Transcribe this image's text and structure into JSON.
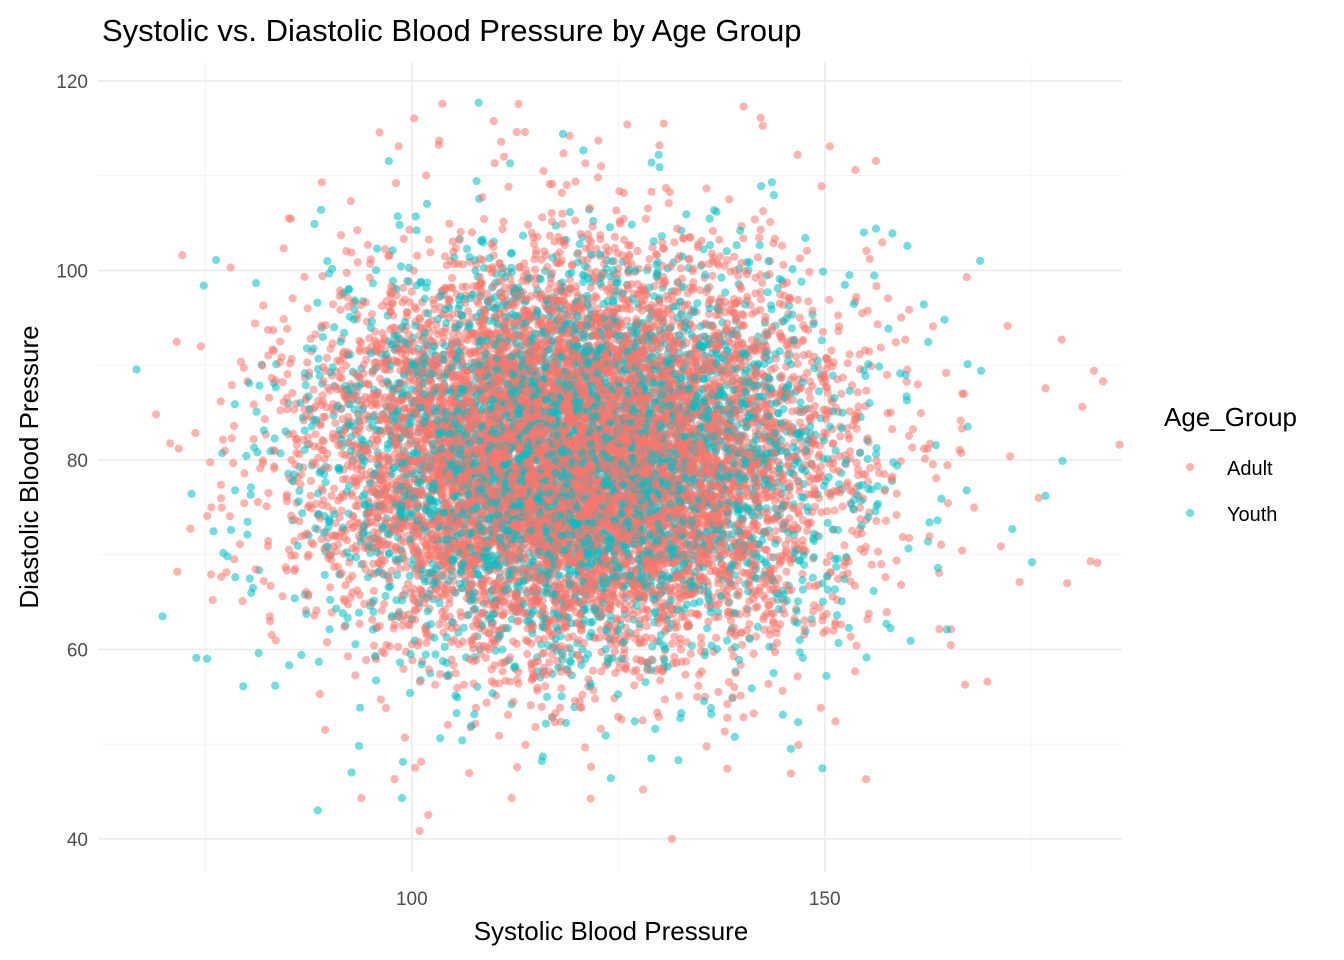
{
  "chart_data": {
    "type": "scatter",
    "title": "Systolic vs. Diastolic Blood Pressure by Age Group",
    "xlabel": "Systolic Blood Pressure",
    "ylabel": "Diastolic Blood Pressure",
    "xlim": [
      62,
      186
    ],
    "ylim": [
      36.5,
      122
    ],
    "x_ticks": [
      100,
      150
    ],
    "x_tick_labels": [
      "100",
      "150"
    ],
    "x_minor_ticks": [
      75,
      125,
      175
    ],
    "y_ticks": [
      40,
      60,
      80,
      100,
      120
    ],
    "y_tick_labels": [
      "40",
      "60",
      "80",
      "100",
      "120"
    ],
    "y_minor_ticks": [
      50,
      70,
      90,
      110
    ],
    "grid": true,
    "legend": {
      "title": "Age_Group",
      "position": "right",
      "entries": [
        {
          "label": "Adult",
          "color": "#F8766D"
        },
        {
          "label": "Youth",
          "color": "#00BFC4"
        }
      ]
    },
    "point_opacity": 0.55,
    "series": [
      {
        "name": "Adult",
        "color": "#F8766D",
        "distribution": {
          "x_mean": 120,
          "x_sd": 15,
          "y_mean": 80,
          "y_sd": 10,
          "count": 9000
        },
        "points": [
          [
            71.6,
            68.2
          ],
          [
            79.5,
            65.1
          ],
          [
            79.2,
            71.1
          ],
          [
            78.2,
            87.9
          ],
          [
            80.1,
            88.3
          ],
          [
            82.0,
            96.3
          ],
          [
            81.0,
            94.4
          ],
          [
            83.3,
            91.5
          ],
          [
            84.0,
            90.3
          ],
          [
            103.7,
            117.6
          ],
          [
            112.7,
            114.6
          ],
          [
            119.1,
            114.2
          ],
          [
            122.6,
            113.7
          ],
          [
            126.1,
            115.4
          ],
          [
            130.5,
            115.5
          ],
          [
            146.7,
            112.2
          ],
          [
            150.6,
            113.1
          ],
          [
            153.7,
            110.6
          ],
          [
            167.2,
            99.3
          ],
          [
            178.7,
            92.7
          ],
          [
            182.6,
            89.4
          ],
          [
            183.7,
            88.3
          ],
          [
            185.7,
            81.6
          ],
          [
            181.2,
            85.6
          ],
          [
            175.9,
            76.0
          ],
          [
            173.6,
            67.1
          ],
          [
            182.2,
            69.3
          ],
          [
            169.7,
            56.6
          ],
          [
            155.0,
            46.3
          ],
          [
            151.3,
            52.4
          ],
          [
            146.8,
            49.9
          ],
          [
            145.9,
            46.9
          ],
          [
            138.2,
            47.4
          ],
          [
            131.5,
            40.0
          ],
          [
            128.0,
            45.2
          ],
          [
            121.7,
            47.6
          ],
          [
            112.1,
            44.3
          ],
          [
            100.4,
            47.5
          ],
          [
            97.9,
            46.3
          ],
          [
            93.9,
            44.3
          ],
          [
            113.7,
            114.6
          ],
          [
            103.3,
            113.7
          ],
          [
            98.4,
            113.1
          ],
          [
            89.1,
            109.3
          ],
          [
            85.1,
            105.5
          ],
          [
            75.7,
            67.9
          ]
        ]
      },
      {
        "name": "Youth",
        "color": "#00BFC4",
        "distribution": {
          "x_mean": 120,
          "x_sd": 15,
          "y_mean": 80,
          "y_sd": 10,
          "count": 4000
        },
        "points": [
          [
            108.1,
            117.7
          ],
          [
            118.3,
            114.4
          ],
          [
            129.9,
            112.2
          ],
          [
            130.0,
            110.9
          ],
          [
            143.6,
            109.3
          ],
          [
            142.3,
            108.9
          ],
          [
            89.0,
            106.4
          ],
          [
            88.2,
            104.9
          ],
          [
            76.3,
            101.1
          ],
          [
            74.8,
            98.4
          ],
          [
            80.3,
            88.1
          ],
          [
            80.9,
            81.3
          ],
          [
            81.3,
            80.8
          ],
          [
            78.1,
            72.6
          ],
          [
            73.9,
            59.1
          ],
          [
            75.2,
            59.0
          ],
          [
            79.6,
            56.1
          ],
          [
            88.6,
            43.0
          ],
          [
            92.7,
            47.0
          ],
          [
            98.8,
            44.3
          ],
          [
            93.6,
            49.8
          ],
          [
            106.1,
            50.4
          ],
          [
            124.1,
            46.4
          ],
          [
            129.0,
            48.5
          ],
          [
            132.3,
            48.3
          ],
          [
            145.9,
            49.5
          ],
          [
            150.2,
            57.2
          ],
          [
            160.4,
            60.9
          ],
          [
            164.8,
            62.1
          ],
          [
            178.8,
            79.9
          ],
          [
            172.7,
            72.7
          ],
          [
            175.1,
            69.2
          ],
          [
            160.0,
            102.6
          ],
          [
            158.2,
            103.9
          ],
          [
            162.0,
            96.4
          ],
          [
            164.5,
            94.8
          ],
          [
            167.3,
            90.1
          ],
          [
            95.8,
            102.3
          ],
          [
            111.9,
            111.3
          ],
          [
            136.9,
            106.2
          ]
        ]
      }
    ]
  }
}
